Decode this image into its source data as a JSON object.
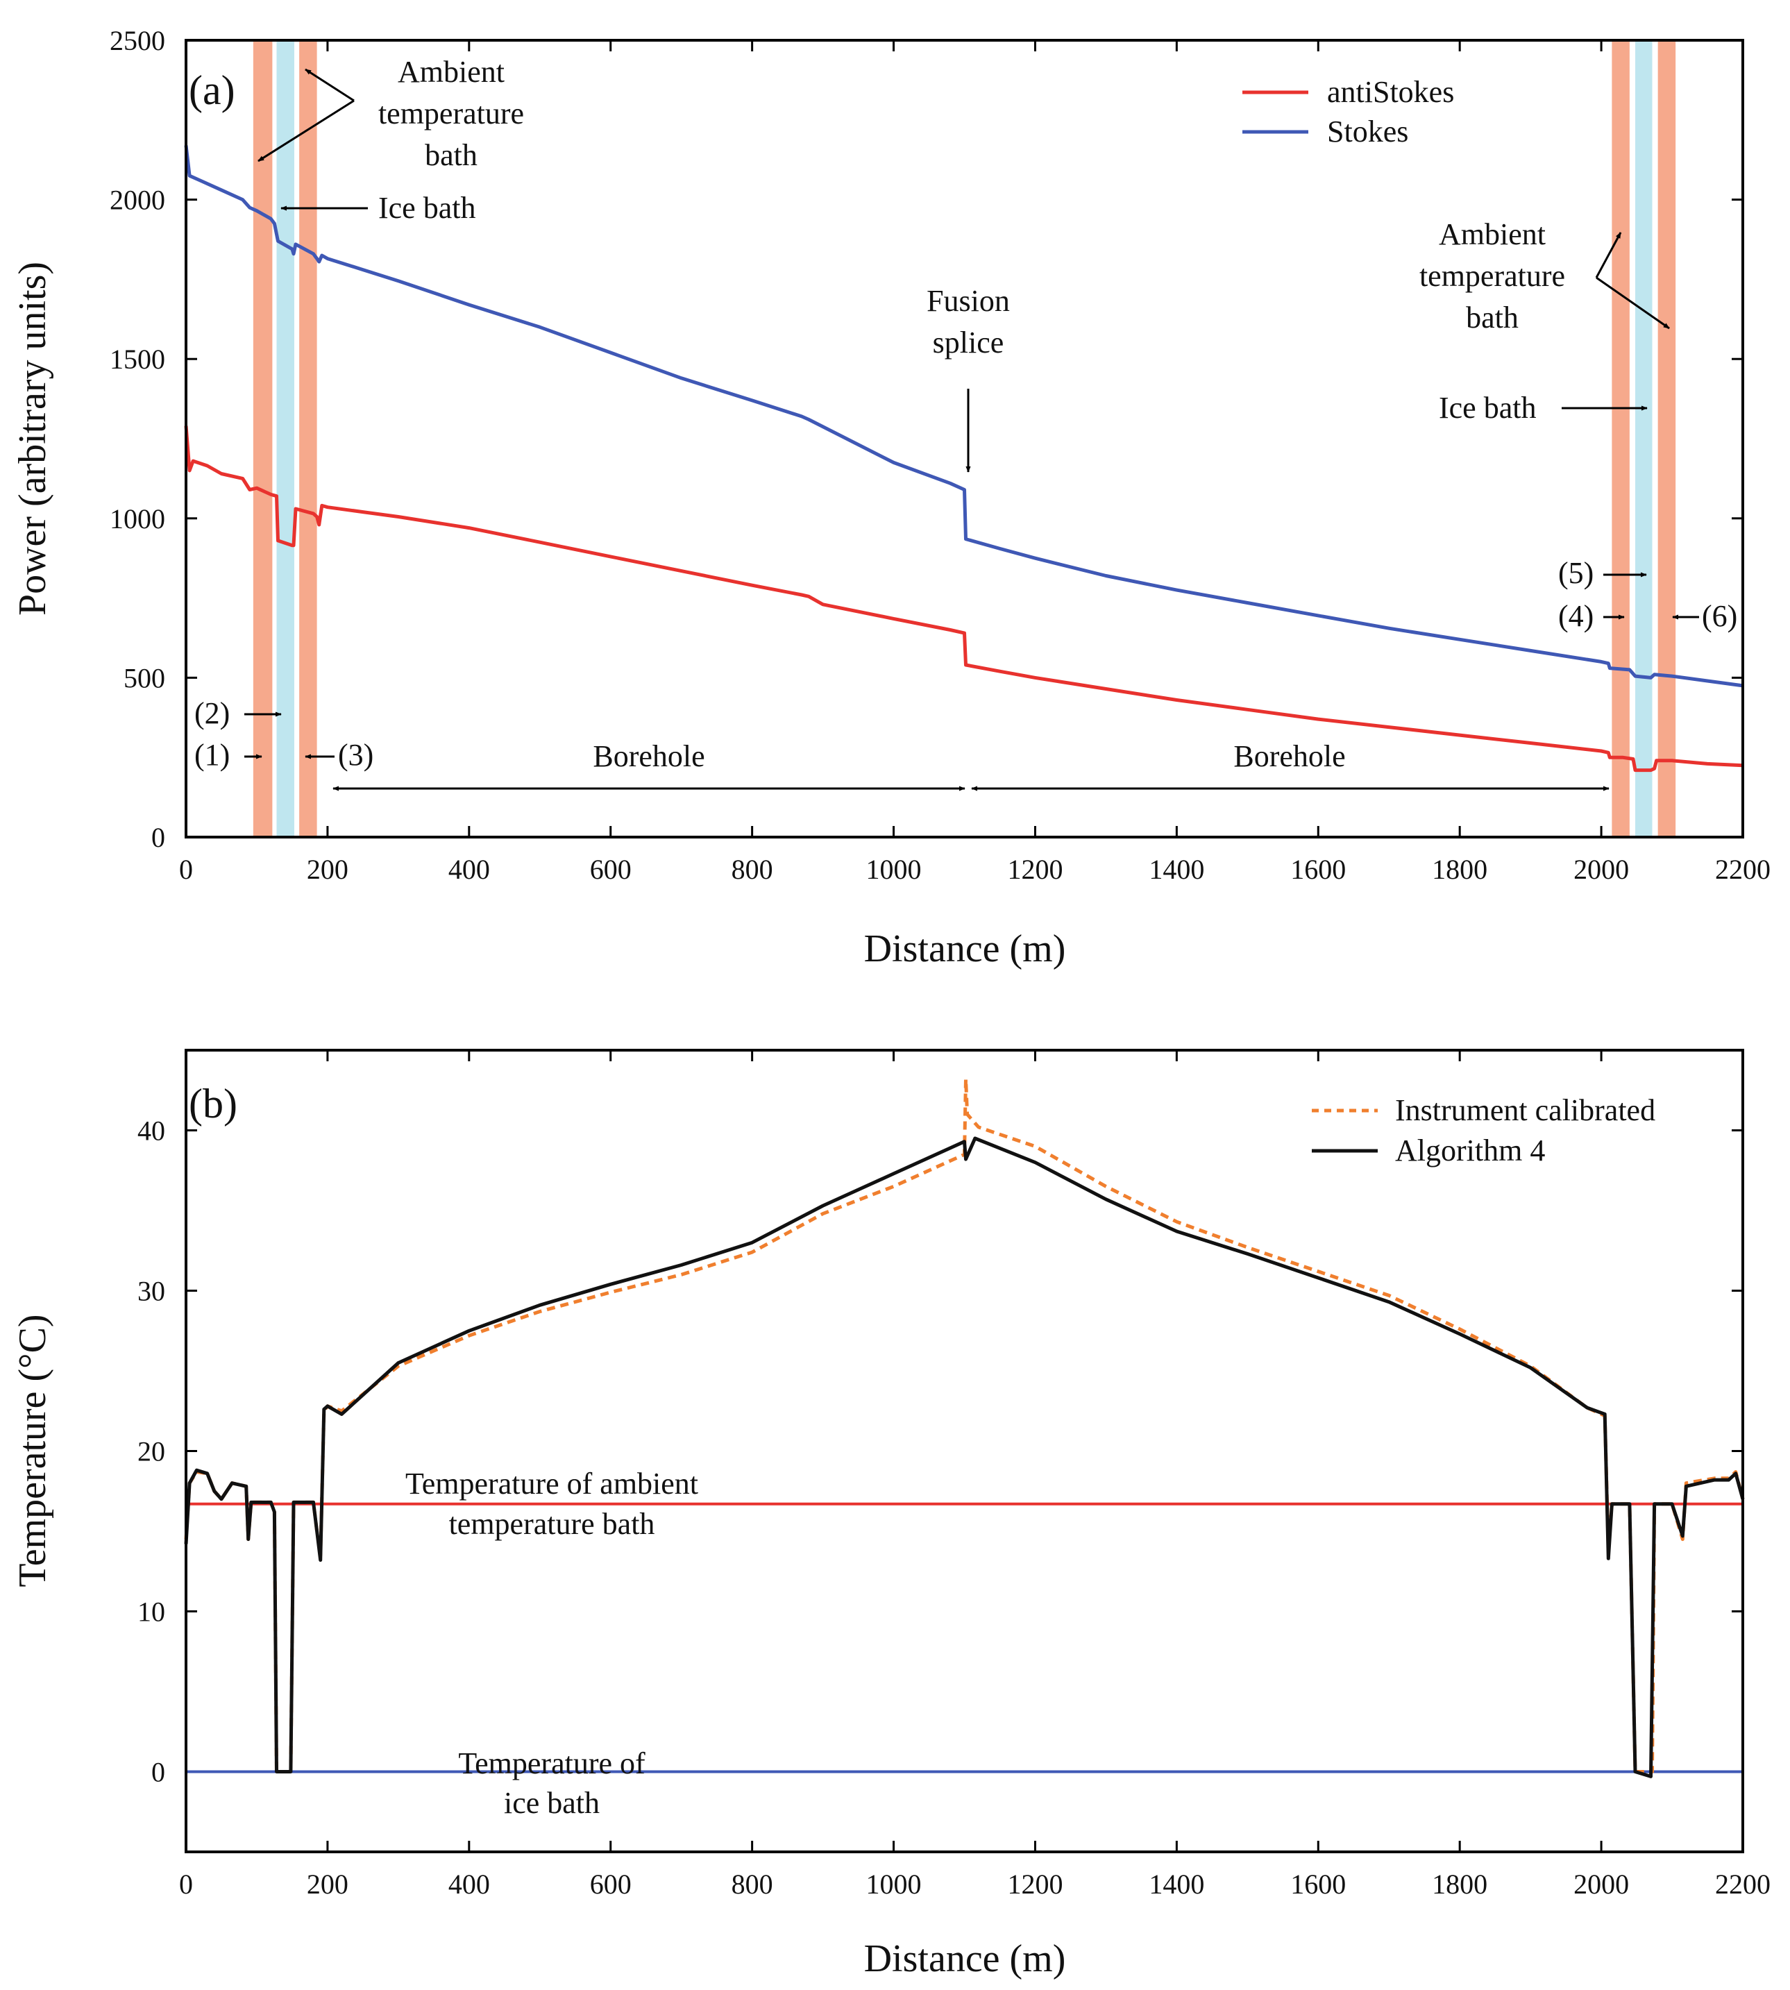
{
  "chart_data": [
    {
      "type": "line",
      "panel_label": "(a)",
      "xlabel": "Distance (m)",
      "ylabel": "Power (arbitrary units)",
      "xlim": [
        0,
        2200
      ],
      "ylim": [
        0,
        2500
      ],
      "xticks": [
        0,
        200,
        400,
        600,
        800,
        1000,
        1200,
        1400,
        1600,
        1800,
        2000,
        2200
      ],
      "yticks": [
        0,
        500,
        1000,
        1500,
        2000,
        2500
      ],
      "grid": false,
      "legend_position": "top-right",
      "bands": [
        {
          "x0": 95,
          "x1": 122,
          "kind": "ambient",
          "color": "#f6a98c"
        },
        {
          "x0": 128,
          "x1": 153,
          "kind": "ice",
          "color": "#bfe6ef"
        },
        {
          "x0": 160,
          "x1": 185,
          "kind": "ambient",
          "color": "#f6a98c"
        },
        {
          "x0": 2015,
          "x1": 2040,
          "kind": "ambient",
          "color": "#f6a98c"
        },
        {
          "x0": 2048,
          "x1": 2072,
          "kind": "ice",
          "color": "#bfe6ef"
        },
        {
          "x0": 2080,
          "x1": 2105,
          "kind": "ambient",
          "color": "#f6a98c"
        }
      ],
      "series": [
        {
          "name": "antiStokes",
          "color": "#e8322e",
          "points": [
            [
              0,
              1290
            ],
            [
              5,
              1150
            ],
            [
              10,
              1180
            ],
            [
              30,
              1165
            ],
            [
              50,
              1140
            ],
            [
              80,
              1125
            ],
            [
              90,
              1090
            ],
            [
              100,
              1095
            ],
            [
              120,
              1075
            ],
            [
              128,
              1070
            ],
            [
              130,
              930
            ],
            [
              150,
              915
            ],
            [
              152,
              915
            ],
            [
              155,
              1030
            ],
            [
              180,
              1015
            ],
            [
              185,
              1005
            ],
            [
              188,
              980
            ],
            [
              192,
              1040
            ],
            [
              200,
              1035
            ],
            [
              250,
              1020
            ],
            [
              300,
              1005
            ],
            [
              400,
              970
            ],
            [
              500,
              925
            ],
            [
              600,
              880
            ],
            [
              700,
              835
            ],
            [
              800,
              790
            ],
            [
              870,
              760
            ],
            [
              880,
              755
            ],
            [
              900,
              730
            ],
            [
              1000,
              685
            ],
            [
              1080,
              650
            ],
            [
              1100,
              640
            ],
            [
              1102,
              540
            ],
            [
              1150,
              520
            ],
            [
              1200,
              500
            ],
            [
              1300,
              465
            ],
            [
              1400,
              430
            ],
            [
              1500,
              400
            ],
            [
              1600,
              370
            ],
            [
              1700,
              345
            ],
            [
              1800,
              320
            ],
            [
              1900,
              295
            ],
            [
              2000,
              270
            ],
            [
              2010,
              265
            ],
            [
              2012,
              250
            ],
            [
              2030,
              250
            ],
            [
              2045,
              245
            ],
            [
              2048,
              210
            ],
            [
              2070,
              210
            ],
            [
              2075,
              215
            ],
            [
              2078,
              240
            ],
            [
              2100,
              240
            ],
            [
              2150,
              230
            ],
            [
              2200,
              225
            ]
          ]
        },
        {
          "name": "Stokes",
          "color": "#3f58b5",
          "points": [
            [
              0,
              2170
            ],
            [
              5,
              2075
            ],
            [
              20,
              2060
            ],
            [
              50,
              2030
            ],
            [
              80,
              2000
            ],
            [
              90,
              1975
            ],
            [
              100,
              1965
            ],
            [
              120,
              1940
            ],
            [
              125,
              1925
            ],
            [
              130,
              1870
            ],
            [
              150,
              1845
            ],
            [
              152,
              1830
            ],
            [
              155,
              1860
            ],
            [
              180,
              1830
            ],
            [
              185,
              1815
            ],
            [
              188,
              1805
            ],
            [
              192,
              1825
            ],
            [
              200,
              1815
            ],
            [
              250,
              1780
            ],
            [
              300,
              1745
            ],
            [
              400,
              1670
            ],
            [
              500,
              1600
            ],
            [
              600,
              1520
            ],
            [
              700,
              1440
            ],
            [
              800,
              1370
            ],
            [
              870,
              1320
            ],
            [
              880,
              1310
            ],
            [
              1000,
              1175
            ],
            [
              1080,
              1110
            ],
            [
              1100,
              1090
            ],
            [
              1102,
              935
            ],
            [
              1150,
              905
            ],
            [
              1200,
              875
            ],
            [
              1300,
              820
            ],
            [
              1400,
              775
            ],
            [
              1500,
              735
            ],
            [
              1600,
              695
            ],
            [
              1700,
              655
            ],
            [
              1800,
              620
            ],
            [
              1900,
              585
            ],
            [
              2000,
              550
            ],
            [
              2010,
              545
            ],
            [
              2012,
              530
            ],
            [
              2040,
              525
            ],
            [
              2048,
              505
            ],
            [
              2070,
              500
            ],
            [
              2075,
              510
            ],
            [
              2100,
              505
            ],
            [
              2150,
              490
            ],
            [
              2200,
              475
            ]
          ]
        }
      ],
      "legend_entries": [
        {
          "label": "antiStokes",
          "color": "#e8322e"
        },
        {
          "label": "Stokes",
          "color": "#3f58b5"
        }
      ],
      "annotations": {
        "ambient_left": [
          "Ambient",
          "temperature",
          "bath"
        ],
        "ice_left": "Ice bath",
        "fusion": [
          "Fusion",
          "splice"
        ],
        "ambient_right": [
          "Ambient",
          "temperature",
          "bath"
        ],
        "ice_right": "Ice bath",
        "borehole": "Borehole",
        "markers": [
          "(1)",
          "(2)",
          "(3)",
          "(4)",
          "(5)",
          "(6)"
        ]
      }
    },
    {
      "type": "line",
      "panel_label": "(b)",
      "xlabel": "Distance (m)",
      "ylabel": "Temperature (°C)",
      "xlim": [
        0,
        2200
      ],
      "ylim": [
        -5,
        45
      ],
      "xticks": [
        0,
        200,
        400,
        600,
        800,
        1000,
        1200,
        1400,
        1600,
        1800,
        2000,
        2200
      ],
      "yticks": [
        0,
        10,
        20,
        30,
        40
      ],
      "grid": false,
      "legend_position": "top-right",
      "reference_lines": [
        {
          "name": "Temperature of ambient temperature bath",
          "y": 16.7,
          "color": "#e8322e"
        },
        {
          "name": "Temperature of ice bath",
          "y": 0,
          "color": "#3f58b5"
        }
      ],
      "series": [
        {
          "name": "Instrument calibrated",
          "color": "#f07f2e",
          "dashed": true,
          "points": [
            [
              0,
              14.5
            ],
            [
              5,
              18
            ],
            [
              15,
              18.7
            ],
            [
              30,
              18.6
            ],
            [
              40,
              17.5
            ],
            [
              50,
              17
            ],
            [
              65,
              18
            ],
            [
              85,
              17.8
            ],
            [
              88,
              14.5
            ],
            [
              92,
              16.8
            ],
            [
              120,
              16.8
            ],
            [
              125,
              16.2
            ],
            [
              128,
              0
            ],
            [
              148,
              0
            ],
            [
              152,
              16.8
            ],
            [
              180,
              16.8
            ],
            [
              185,
              15
            ],
            [
              190,
              13.5
            ],
            [
              195,
              22.5
            ],
            [
              200,
              22.8
            ],
            [
              220,
              22.5
            ],
            [
              300,
              25.3
            ],
            [
              400,
              27.2
            ],
            [
              500,
              28.7
            ],
            [
              600,
              29.9
            ],
            [
              700,
              31
            ],
            [
              800,
              32.4
            ],
            [
              900,
              34.8
            ],
            [
              1000,
              36.5
            ],
            [
              1100,
              38.5
            ],
            [
              1102,
              43.2
            ],
            [
              1104,
              41
            ],
            [
              1120,
              40.2
            ],
            [
              1200,
              39
            ],
            [
              1300,
              36.5
            ],
            [
              1400,
              34.3
            ],
            [
              1500,
              32.7
            ],
            [
              1600,
              31.2
            ],
            [
              1700,
              29.7
            ],
            [
              1800,
              27.6
            ],
            [
              1900,
              25.3
            ],
            [
              1980,
              22.7
            ],
            [
              2005,
              22.2
            ],
            [
              2010,
              13.8
            ],
            [
              2015,
              16.7
            ],
            [
              2040,
              16.7
            ],
            [
              2048,
              0
            ],
            [
              2072,
              0
            ],
            [
              2075,
              16.7
            ],
            [
              2100,
              16.7
            ],
            [
              2115,
              14.5
            ],
            [
              2120,
              18
            ],
            [
              2160,
              18.3
            ],
            [
              2180,
              18.3
            ],
            [
              2190,
              18.7
            ],
            [
              2200,
              17
            ]
          ]
        },
        {
          "name": "Algorithm 4",
          "color": "#111111",
          "dashed": false,
          "points": [
            [
              0,
              14.2
            ],
            [
              5,
              18
            ],
            [
              15,
              18.8
            ],
            [
              30,
              18.6
            ],
            [
              40,
              17.5
            ],
            [
              50,
              17
            ],
            [
              65,
              18
            ],
            [
              85,
              17.8
            ],
            [
              88,
              14.5
            ],
            [
              92,
              16.8
            ],
            [
              120,
              16.8
            ],
            [
              125,
              16.2
            ],
            [
              128,
              0
            ],
            [
              148,
              0
            ],
            [
              152,
              16.8
            ],
            [
              180,
              16.8
            ],
            [
              185,
              15
            ],
            [
              190,
              13.2
            ],
            [
              195,
              22.6
            ],
            [
              200,
              22.8
            ],
            [
              220,
              22.3
            ],
            [
              300,
              25.5
            ],
            [
              400,
              27.5
            ],
            [
              500,
              29.1
            ],
            [
              600,
              30.4
            ],
            [
              700,
              31.6
            ],
            [
              800,
              33
            ],
            [
              900,
              35.3
            ],
            [
              1000,
              37.3
            ],
            [
              1100,
              39.3
            ],
            [
              1102,
              38.2
            ],
            [
              1115,
              39.5
            ],
            [
              1200,
              38
            ],
            [
              1300,
              35.7
            ],
            [
              1400,
              33.7
            ],
            [
              1500,
              32.3
            ],
            [
              1600,
              30.8
            ],
            [
              1700,
              29.3
            ],
            [
              1800,
              27.3
            ],
            [
              1900,
              25.2
            ],
            [
              1980,
              22.7
            ],
            [
              2005,
              22.3
            ],
            [
              2010,
              13.3
            ],
            [
              2015,
              16.7
            ],
            [
              2040,
              16.7
            ],
            [
              2048,
              0
            ],
            [
              2070,
              -0.3
            ],
            [
              2075,
              16.7
            ],
            [
              2100,
              16.7
            ],
            [
              2115,
              14.7
            ],
            [
              2120,
              17.8
            ],
            [
              2160,
              18.2
            ],
            [
              2180,
              18.2
            ],
            [
              2190,
              18.6
            ],
            [
              2200,
              17
            ]
          ]
        }
      ],
      "legend_entries": [
        {
          "label": "Instrument calibrated",
          "color": "#f07f2e",
          "dashed": true
        },
        {
          "label": "Algorithm 4",
          "color": "#111111",
          "dashed": false
        }
      ],
      "annotations": {
        "ambient_line_label": [
          "Temperature of ambient",
          "temperature bath"
        ],
        "ice_line_label": [
          "Temperature of",
          "ice bath"
        ]
      }
    }
  ]
}
